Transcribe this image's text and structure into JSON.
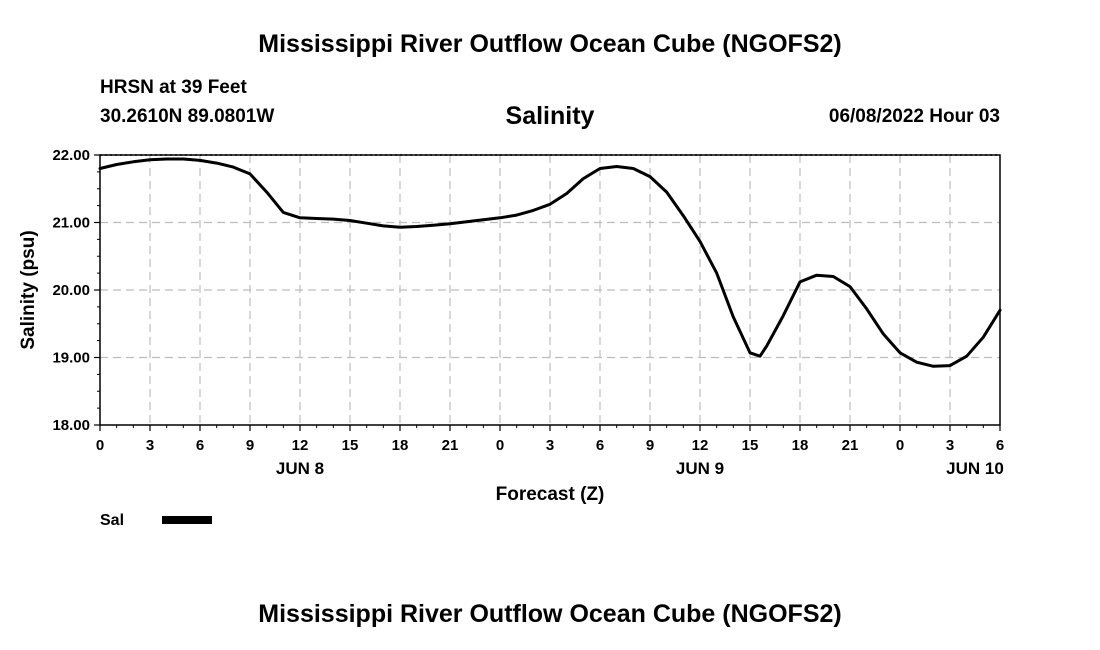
{
  "page": {
    "title": "Mississippi River Outflow Ocean Cube (NGOFS2)",
    "footer_title": "Mississippi River Outflow Ocean Cube (NGOFS2)",
    "station": "HRSN at 39 Feet",
    "location": "30.2610N  89.0801W",
    "datetime": "06/08/2022 Hour 03"
  },
  "chart_data": {
    "type": "line",
    "title": "Salinity",
    "xlabel": "Forecast (Z)",
    "ylabel": "Salinity (psu)",
    "ylim": [
      18.0,
      22.0
    ],
    "yticks": [
      "18.00",
      "19.00",
      "20.00",
      "21.00",
      "22.00"
    ],
    "xlim": [
      0,
      54
    ],
    "xtick_hours": [
      0,
      3,
      6,
      9,
      12,
      15,
      18,
      21,
      24,
      27,
      30,
      33,
      36,
      39,
      42,
      45,
      48,
      51,
      54
    ],
    "xtick_labels": [
      "0",
      "3",
      "6",
      "9",
      "12",
      "15",
      "18",
      "21",
      "0",
      "3",
      "6",
      "9",
      "12",
      "15",
      "18",
      "21",
      "0",
      "3",
      "6"
    ],
    "date_labels": [
      {
        "hour": 12,
        "label": "JUN 8"
      },
      {
        "hour": 36,
        "label": "JUN 9"
      },
      {
        "hour": 52.5,
        "label": "JUN 10"
      }
    ],
    "grid": true,
    "legend_position": "bottom-left",
    "series": [
      {
        "name": "Sal",
        "color": "#000000",
        "x": [
          0,
          1,
          2,
          3,
          4,
          5,
          6,
          7,
          8,
          9,
          10,
          11,
          12,
          13,
          14,
          15,
          16,
          17,
          18,
          19,
          20,
          21,
          22,
          23,
          24,
          25,
          26,
          27,
          28,
          29,
          30,
          31,
          32,
          33,
          34,
          35,
          36,
          37,
          38,
          39,
          39.6,
          40,
          41,
          42,
          43,
          44,
          45,
          46,
          47,
          48,
          49,
          50,
          51,
          52,
          53,
          54
        ],
        "y": [
          21.8,
          21.86,
          21.9,
          21.93,
          21.94,
          21.94,
          21.92,
          21.88,
          21.82,
          21.72,
          21.45,
          21.15,
          21.07,
          21.06,
          21.05,
          21.03,
          20.99,
          20.95,
          20.93,
          20.94,
          20.96,
          20.98,
          21.01,
          21.04,
          21.07,
          21.11,
          21.18,
          21.27,
          21.43,
          21.65,
          21.8,
          21.83,
          21.8,
          21.68,
          21.45,
          21.1,
          20.72,
          20.25,
          19.6,
          19.07,
          19.02,
          19.17,
          19.62,
          20.12,
          20.22,
          20.2,
          20.05,
          19.72,
          19.35,
          19.07,
          18.93,
          18.87,
          18.88,
          19.02,
          19.3,
          19.7
        ]
      }
    ]
  }
}
